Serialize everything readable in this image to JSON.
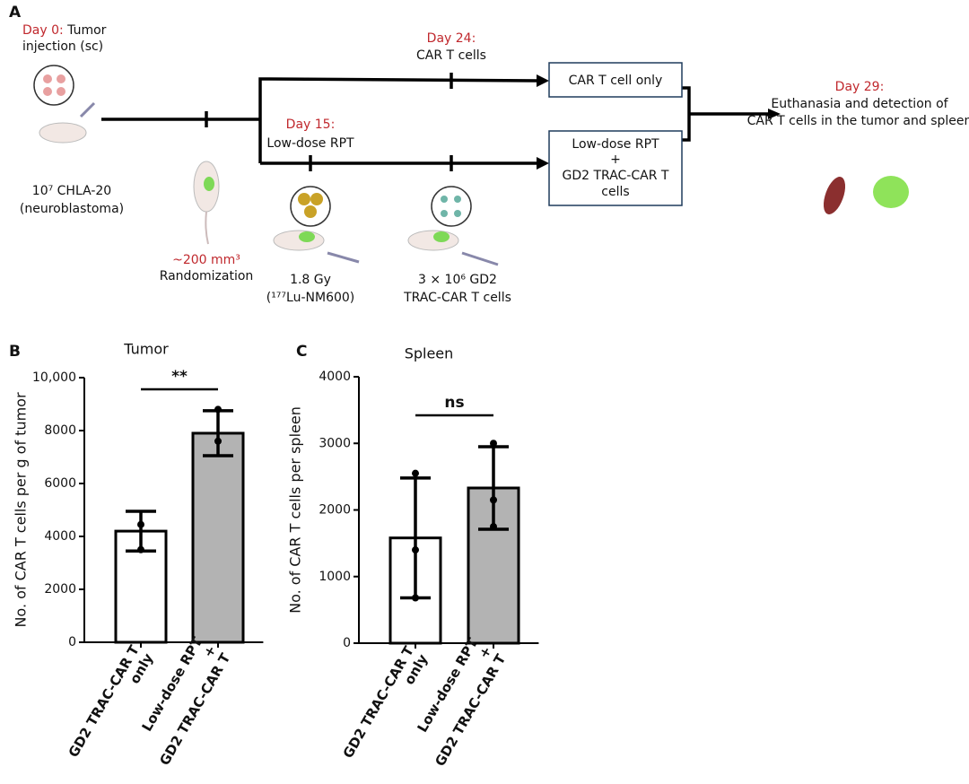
{
  "panel_labels": [
    "A",
    "B",
    "C"
  ],
  "diagram": {
    "day0": {
      "day": "Day 0:",
      "text": " Tumor",
      "line2": "injection (sc)"
    },
    "cells": [
      "10⁷ CHLA-20",
      "(neuroblastoma)"
    ],
    "randomization": {
      "size": "~200 mm³",
      "label": "Randomization"
    },
    "day24": {
      "day": "Day 24:",
      "label": "CAR T cells"
    },
    "day15": {
      "day": "Day 15:",
      "label": "Low-dose RPT"
    },
    "box1": [
      "CAR T cell only"
    ],
    "box2": [
      "Low-dose RPT",
      "+",
      "GD2 TRAC-CAR T",
      "cells"
    ],
    "day29": {
      "day": "Day 29:",
      "lines": [
        "Euthanasia and detection of",
        "CAR T cells in the tumor and spleen"
      ]
    },
    "rpt_dose": [
      "1.8 Gy",
      "(¹⁷⁷Lu-NM600)"
    ],
    "cart_dose": [
      "3 × 10⁶ GD2",
      "TRAC-CAR T cells"
    ]
  },
  "chart_data": [
    {
      "type": "bar",
      "title": "Tumor",
      "y_label": "No. of CAR T cells per g of tumor",
      "categories": [
        [
          "GD2 TRAC-CAR T",
          "only"
        ],
        [
          "Low-dose RPT",
          "+",
          "GD2 TRAC-CAR T"
        ]
      ],
      "values": [
        4200,
        7900
      ],
      "errors": [
        750,
        850
      ],
      "points": [
        [
          4450,
          3500
        ],
        [
          7600,
          8800
        ]
      ],
      "colors": [
        "#ffffff",
        "#b3b3b3"
      ],
      "ylim": [
        0,
        10000
      ],
      "yticks": [
        0,
        2000,
        4000,
        6000,
        8000,
        {
          "value": 10000,
          "label": "10,000"
        }
      ],
      "significance": "**"
    },
    {
      "type": "bar",
      "title": "Spleen",
      "y_label": "No. of CAR T cells per spleen",
      "categories": [
        [
          "GD2 TRAC-CAR T",
          "only"
        ],
        [
          "Low-dose RPT",
          "+",
          "GD2 TRAC-CAR T"
        ]
      ],
      "values": [
        1580,
        2330
      ],
      "errors": [
        900,
        620
      ],
      "points": [
        [
          2550,
          1400,
          680
        ],
        [
          3000,
          2150,
          1750
        ]
      ],
      "colors": [
        "#ffffff",
        "#b3b3b3"
      ],
      "ylim": [
        0,
        4000
      ],
      "yticks": [
        0,
        1000,
        2000,
        3000,
        4000
      ],
      "significance": "ns"
    }
  ]
}
